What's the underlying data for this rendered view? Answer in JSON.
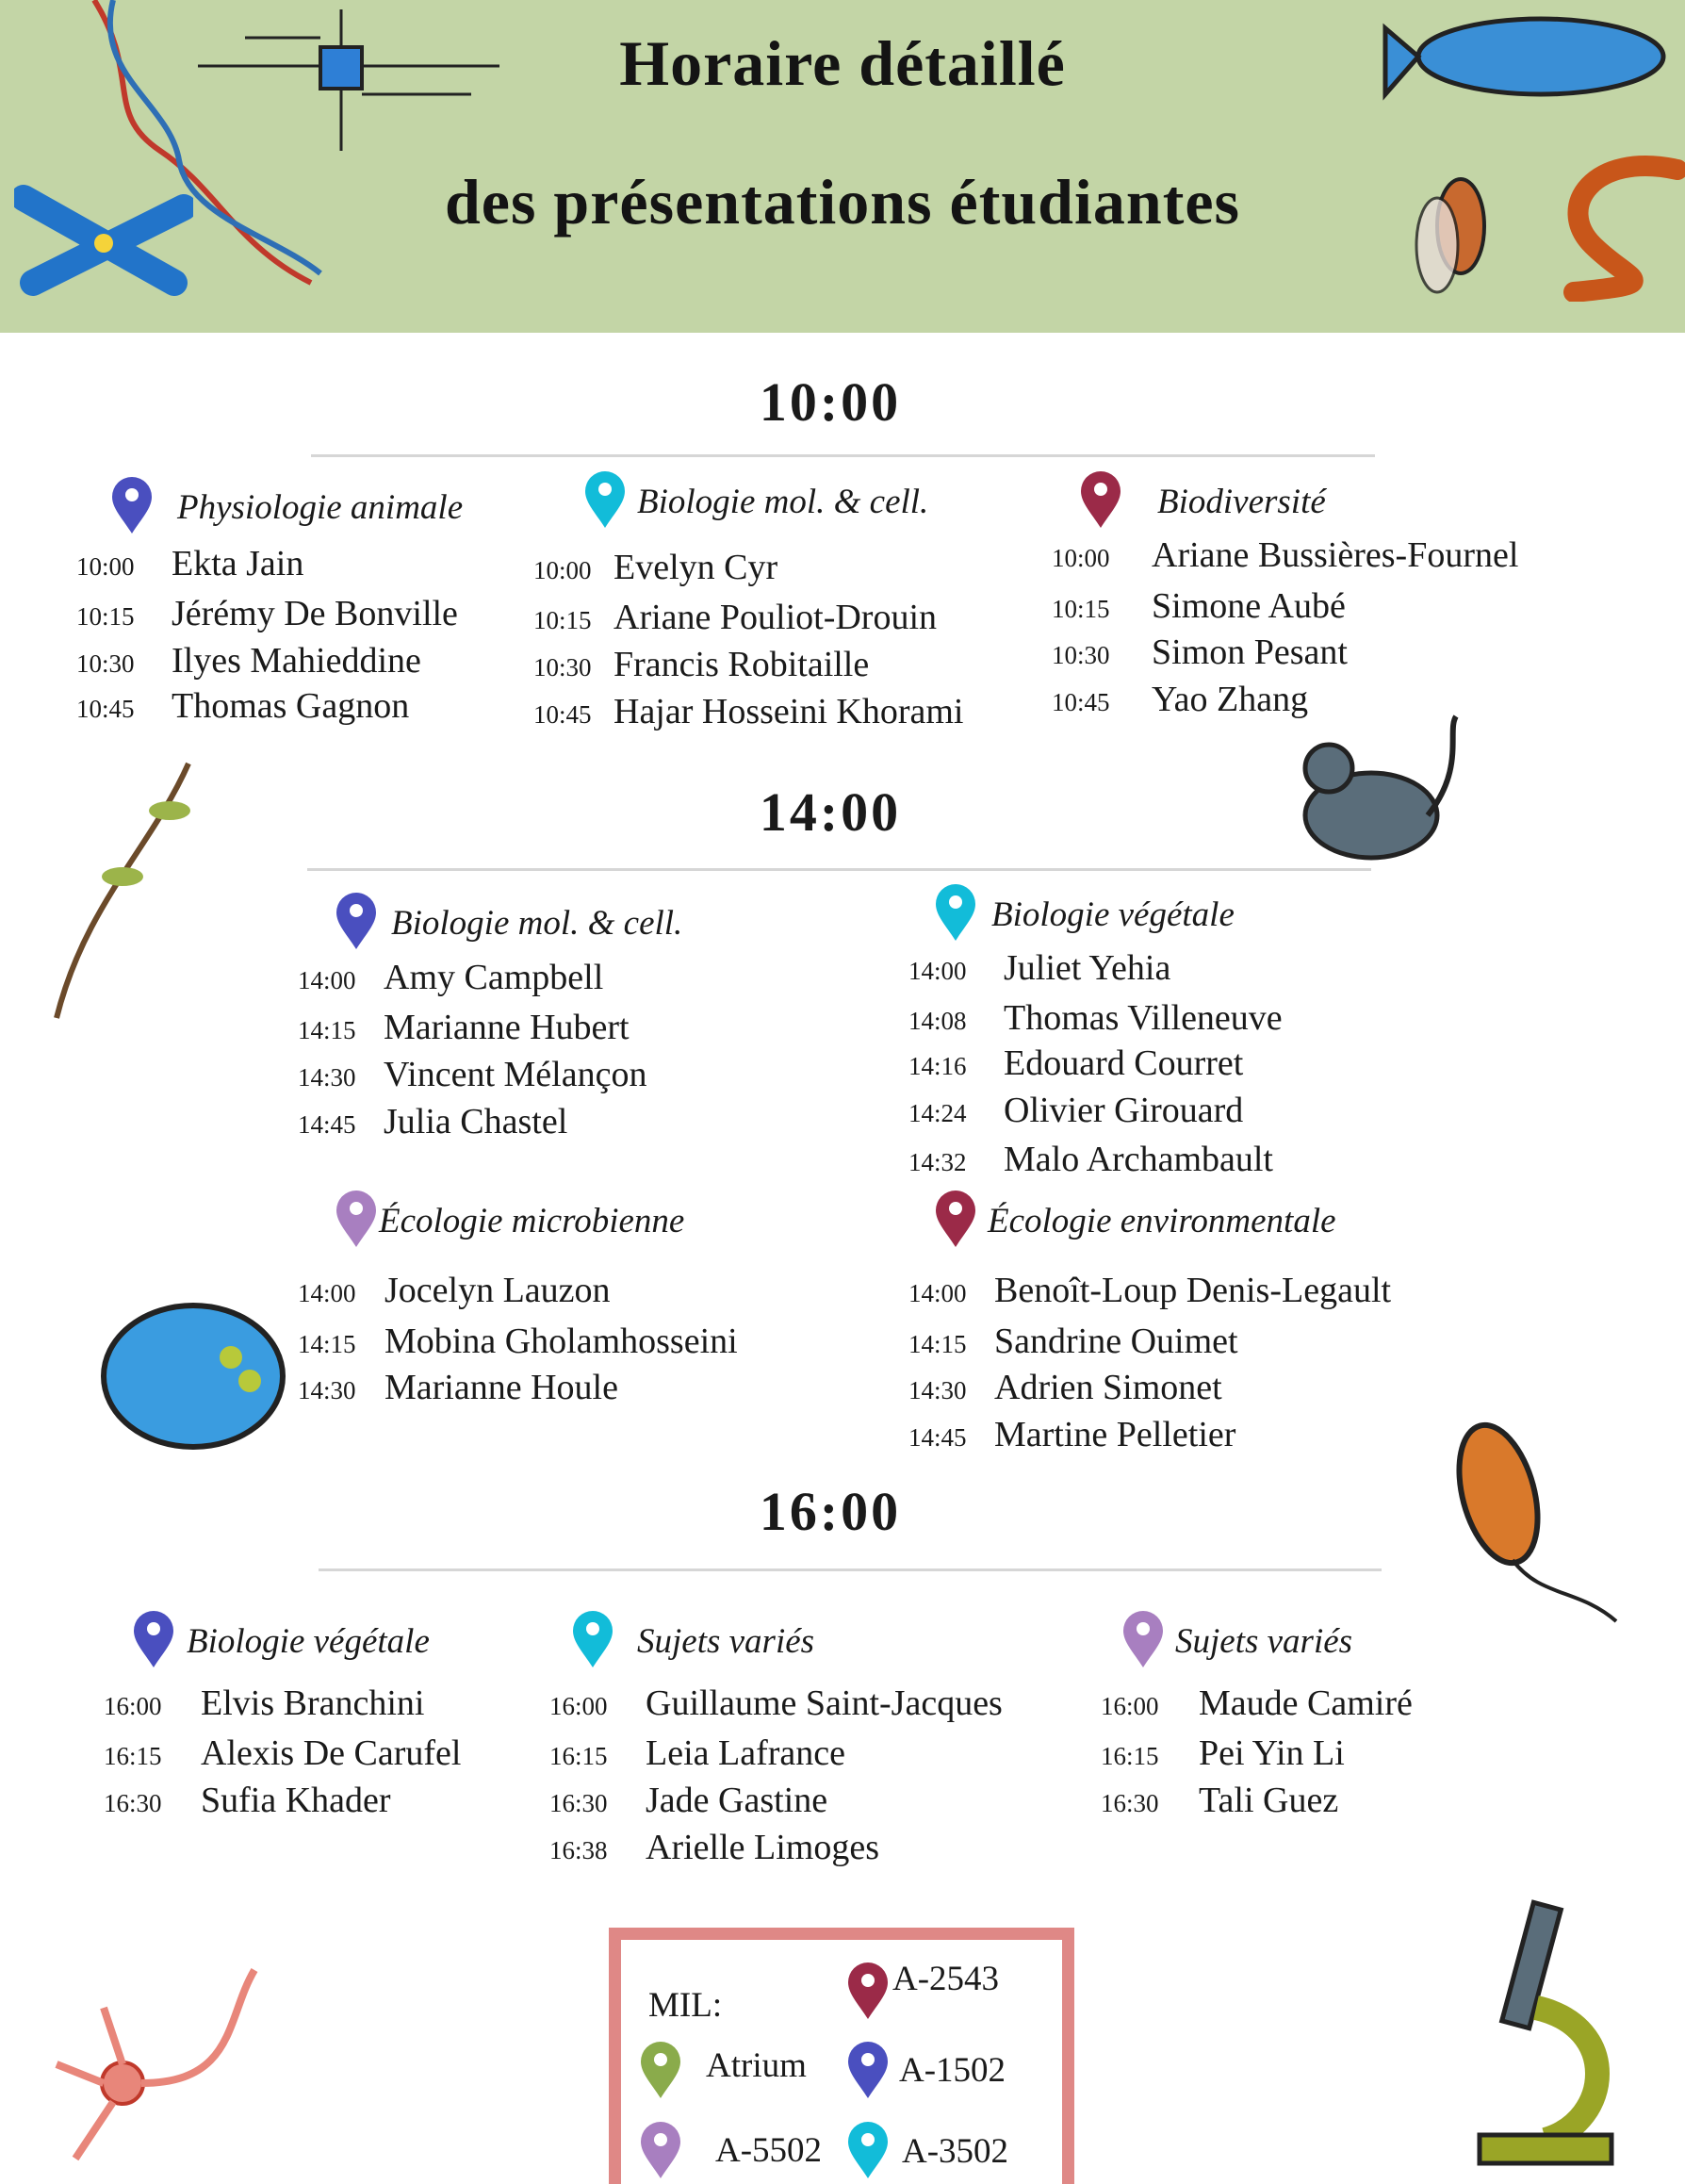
{
  "header": {
    "title_line1": "Horaire détaillé",
    "title_line2": "des présentations  étudiantes",
    "background": "#c3d5a6"
  },
  "pin_colors": {
    "blue": "#4a4fbf",
    "cyan": "#12bcd9",
    "maroon": "#9b2a48",
    "purple": "#a87fc0",
    "green": "#8aab4b"
  },
  "slots": [
    {
      "time": "10:00",
      "blocks": [
        {
          "category": "Physiologie animale",
          "pin": "blue",
          "entries": [
            {
              "time": "10:00",
              "name": "Ekta Jain"
            },
            {
              "time": "10:15",
              "name": "Jérémy De Bonville"
            },
            {
              "time": "10:30",
              "name": "Ilyes Mahieddine"
            },
            {
              "time": "10:45",
              "name": "Thomas Gagnon"
            }
          ]
        },
        {
          "category": "Biologie mol. & cell.",
          "pin": "cyan",
          "entries": [
            {
              "time": "10:00",
              "name": "Evelyn Cyr"
            },
            {
              "time": "10:15",
              "name": "Ariane Pouliot-Drouin"
            },
            {
              "time": "10:30",
              "name": "Francis Robitaille"
            },
            {
              "time": "10:45",
              "name": "Hajar Hosseini Khorami"
            }
          ]
        },
        {
          "category": "Biodiversité",
          "pin": "maroon",
          "entries": [
            {
              "time": "10:00",
              "name": "Ariane Bussières-Fournel"
            },
            {
              "time": "10:15",
              "name": "Simone Aubé"
            },
            {
              "time": "10:30",
              "name": "Simon Pesant"
            },
            {
              "time": "10:45",
              "name": "Yao Zhang"
            }
          ]
        }
      ]
    },
    {
      "time": "14:00",
      "blocks": [
        {
          "category": "Biologie mol. & cell.",
          "pin": "blue",
          "entries": [
            {
              "time": "14:00",
              "name": "Amy Campbell"
            },
            {
              "time": "14:15",
              "name": "Marianne Hubert"
            },
            {
              "time": "14:30",
              "name": "Vincent Mélançon"
            },
            {
              "time": "14:45",
              "name": "Julia Chastel"
            }
          ]
        },
        {
          "category": "Biologie végétale",
          "pin": "cyan",
          "entries": [
            {
              "time": "14:00",
              "name": "Juliet Yehia"
            },
            {
              "time": "14:08",
              "name": "Thomas Villeneuve"
            },
            {
              "time": "14:16",
              "name": "Edouard Courret"
            },
            {
              "time": "14:24",
              "name": "Olivier Girouard"
            },
            {
              "time": "14:32",
              "name": "Malo Archambault"
            }
          ]
        },
        {
          "category": "Écologie microbienne",
          "pin": "purple",
          "entries": [
            {
              "time": "14:00",
              "name": "Jocelyn Lauzon"
            },
            {
              "time": "14:15",
              "name": "Mobina Gholamhosseini"
            },
            {
              "time": "14:30",
              "name": "Marianne Houle"
            }
          ]
        },
        {
          "category": "Écologie environmentale",
          "pin": "maroon",
          "entries": [
            {
              "time": "14:00",
              "name": "Benoît-Loup Denis-Legault"
            },
            {
              "time": "14:15",
              "name": "Sandrine Ouimet"
            },
            {
              "time": "14:30",
              "name": "Adrien Simonet"
            },
            {
              "time": "14:45",
              "name": "Martine Pelletier"
            }
          ]
        }
      ]
    },
    {
      "time": "16:00",
      "blocks": [
        {
          "category": "Biologie végétale",
          "pin": "blue",
          "entries": [
            {
              "time": "16:00",
              "name": "Elvis Branchini"
            },
            {
              "time": "16:15",
              "name": "Alexis De Carufel"
            },
            {
              "time": "16:30",
              "name": "Sufia Khader"
            }
          ]
        },
        {
          "category": "Sujets variés",
          "pin": "cyan",
          "entries": [
            {
              "time": "16:00",
              "name": "Guillaume Saint-Jacques"
            },
            {
              "time": "16:15",
              "name": "Leia Lafrance"
            },
            {
              "time": "16:30",
              "name": "Jade Gastine"
            },
            {
              "time": "16:38",
              "name": "Arielle Limoges"
            }
          ]
        },
        {
          "category": "Sujets variés",
          "pin": "purple",
          "entries": [
            {
              "time": "16:00",
              "name": "Maude Camiré"
            },
            {
              "time": "16:15",
              "name": "Pei Yin Li"
            },
            {
              "time": "16:30",
              "name": "Tali Guez"
            }
          ]
        }
      ]
    }
  ],
  "legend": {
    "heading": "MIL:",
    "border_color": "#df8886",
    "items": [
      {
        "label": "A-2543",
        "pin": "maroon"
      },
      {
        "label": "Atrium",
        "pin": "green"
      },
      {
        "label": "A-1502",
        "pin": "blue"
      },
      {
        "label": "A-5502",
        "pin": "purple"
      },
      {
        "label": "A-3502",
        "pin": "cyan"
      }
    ]
  },
  "decorations": [
    "dna-icon",
    "circuit-chip-icon",
    "chromosome-icon",
    "zebrafish-icon",
    "fruit-fly-icon",
    "worm-icon",
    "mouse-icon",
    "plant-icon",
    "daphnia-icon",
    "bacterium-icon",
    "neuron-icon",
    "microscope-icon"
  ]
}
